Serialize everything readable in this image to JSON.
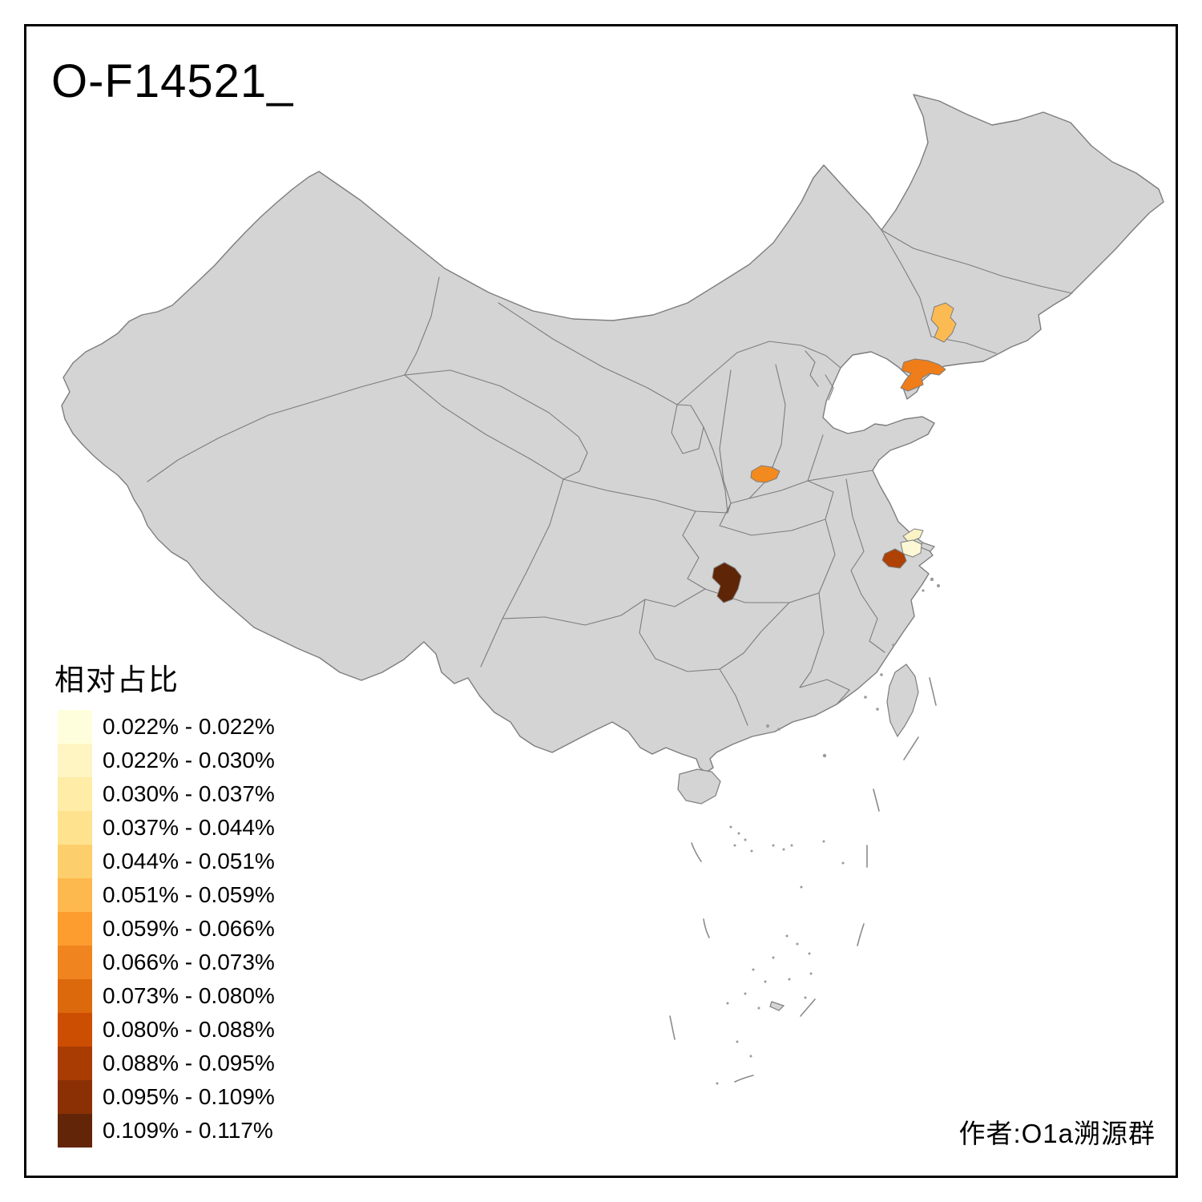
{
  "title": "O-F14521_",
  "author_credit": "作者:O1a溯源群",
  "legend": {
    "title": "相对占比",
    "items": [
      {
        "label": "0.022% - 0.022%",
        "color": "#FFFEDC"
      },
      {
        "label": "0.022% - 0.030%",
        "color": "#FFF5C2"
      },
      {
        "label": "0.030% - 0.037%",
        "color": "#FEECA7"
      },
      {
        "label": "0.037% - 0.044%",
        "color": "#FEE28E"
      },
      {
        "label": "0.044% - 0.051%",
        "color": "#FDCF6C"
      },
      {
        "label": "0.051% - 0.059%",
        "color": "#FDB94E"
      },
      {
        "label": "0.059% - 0.066%",
        "color": "#FD9C2F"
      },
      {
        "label": "0.066% - 0.073%",
        "color": "#F0841E"
      },
      {
        "label": "0.073% - 0.080%",
        "color": "#DD690D"
      },
      {
        "label": "0.080% - 0.088%",
        "color": "#CC4E03"
      },
      {
        "label": "0.088% - 0.095%",
        "color": "#A93C03"
      },
      {
        "label": "0.095% - 0.109%",
        "color": "#8B3004"
      },
      {
        "label": "0.109% - 0.117%",
        "color": "#622507"
      }
    ]
  },
  "map": {
    "land_fill": "#D4D4D4",
    "border_color": "#7D7D7D",
    "sea_color": "#FFFFFF",
    "frame_color": "#000000",
    "highlighted_regions": [
      {
        "id": "region-northeast-inland",
        "color": "#FCBA52"
      },
      {
        "id": "region-northeast-peninsula",
        "color": "#EE7D1A"
      },
      {
        "id": "region-central",
        "color": "#F28A1F"
      },
      {
        "id": "region-east-coast-strip",
        "color": "#FAF3C6"
      },
      {
        "id": "region-east-coast-pale",
        "color": "#FCF8D6"
      },
      {
        "id": "region-east-coast-dark",
        "color": "#AE4103"
      },
      {
        "id": "region-south-central-darkest",
        "color": "#5F2507"
      }
    ]
  }
}
